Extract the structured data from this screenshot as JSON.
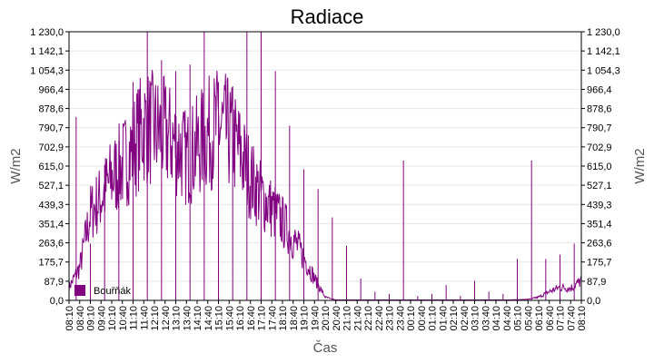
{
  "chart_data": {
    "type": "line",
    "title": "Radiace",
    "xlabel": "Čas",
    "ylabel": "W/m2",
    "ylim": [
      0,
      1230
    ],
    "y_ticks": [
      "0,0",
      "87,9",
      "175,7",
      "263,6",
      "351,4",
      "439,3",
      "527,1",
      "615,0",
      "702,9",
      "790,7",
      "878,6",
      "966,4",
      "1 054,3",
      "1 142,1",
      "1 230,0"
    ],
    "x_ticks": [
      "08:10",
      "08:40",
      "09:10",
      "09:40",
      "10:10",
      "10:40",
      "11:10",
      "11:40",
      "12:10",
      "12:40",
      "13:10",
      "13:40",
      "14:10",
      "14:40",
      "15:10",
      "15:40",
      "16:10",
      "16:40",
      "17:10",
      "17:40",
      "18:10",
      "18:40",
      "19:10",
      "19:40",
      "20:10",
      "20:40",
      "21:10",
      "21:40",
      "22:10",
      "22:40",
      "23:10",
      "23:40",
      "00:10",
      "00:40",
      "01:10",
      "01:40",
      "02:10",
      "02:40",
      "03:10",
      "03:40",
      "04:10",
      "04:40",
      "05:10",
      "05:40",
      "06:10",
      "06:40",
      "07:10",
      "07:40",
      "08:10"
    ],
    "grid": true,
    "legend": "bottom-left",
    "color": "#800080",
    "series": [
      {
        "name": "Bouřňák",
        "x": [
          "08:10",
          "08:40",
          "09:10",
          "09:40",
          "10:10",
          "10:40",
          "11:10",
          "11:40",
          "12:10",
          "12:40",
          "13:10",
          "13:40",
          "14:10",
          "14:40",
          "15:10",
          "15:40",
          "16:10",
          "16:40",
          "17:10",
          "17:40",
          "18:10",
          "18:40",
          "19:10",
          "19:40",
          "20:10",
          "20:40",
          "21:10",
          "21:40",
          "22:10",
          "22:40",
          "23:10",
          "23:40",
          "00:10",
          "00:40",
          "01:10",
          "01:40",
          "02:10",
          "02:40",
          "03:10",
          "03:40",
          "04:10",
          "04:40",
          "05:10",
          "05:40",
          "06:10",
          "06:40",
          "07:10",
          "07:40",
          "08:10"
        ],
        "values": [
          60,
          150,
          400,
          470,
          560,
          620,
          700,
          800,
          780,
          760,
          720,
          650,
          700,
          760,
          800,
          760,
          680,
          560,
          480,
          420,
          360,
          280,
          200,
          100,
          15,
          2,
          2,
          2,
          2,
          2,
          2,
          2,
          2,
          2,
          2,
          2,
          2,
          2,
          2,
          2,
          2,
          2,
          3,
          5,
          15,
          40,
          60,
          55,
          90
        ],
        "peaks": [
          840,
          260,
          620,
          730,
          1000,
          1230,
          1100,
          1050,
          1080,
          1230,
          1000,
          980,
          1230,
          1230,
          1050,
          800,
          600,
          510,
          380,
          250,
          100,
          40,
          30,
          640,
          20,
          30,
          70,
          20,
          90,
          40,
          30,
          190,
          640,
          190,
          210,
          260
        ]
      }
    ]
  }
}
